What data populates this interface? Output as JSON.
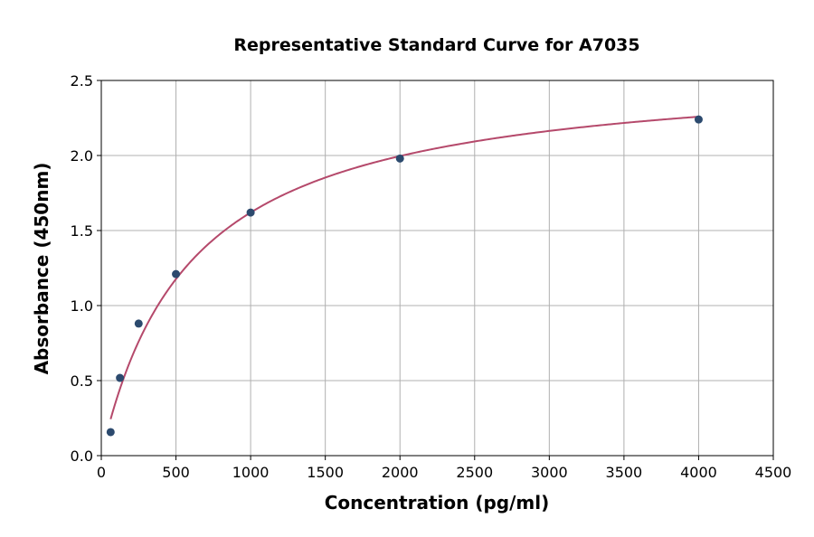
{
  "chart_data": {
    "type": "scatter",
    "title": "Representative Standard Curve for A7035",
    "xlabel": "Concentration (pg/ml)",
    "ylabel": "Absorbance (450nm)",
    "xlim": [
      0,
      4500
    ],
    "ylim": [
      0,
      2.5
    ],
    "xticks": [
      "0",
      "500",
      "1000",
      "1500",
      "2000",
      "2500",
      "3000",
      "3500",
      "4000",
      "4500"
    ],
    "yticks": [
      "0.0",
      "0.5",
      "1.0",
      "1.5",
      "2.0",
      "2.5"
    ],
    "grid": true,
    "points": {
      "x": [
        62.5,
        125,
        250,
        500,
        1000,
        2000,
        4000
      ],
      "y": [
        0.157,
        0.518,
        0.88,
        1.21,
        1.62,
        1.98,
        2.24
      ]
    },
    "fit_curve": {
      "type": "4PL",
      "a": 0,
      "b": 1.0,
      "c": 605,
      "d": 2.6,
      "x_range": [
        62.5,
        4000
      ]
    },
    "colors": {
      "points": "#2c4a6e",
      "curve": "#b5496b",
      "grid": "#b0b0b0"
    }
  }
}
